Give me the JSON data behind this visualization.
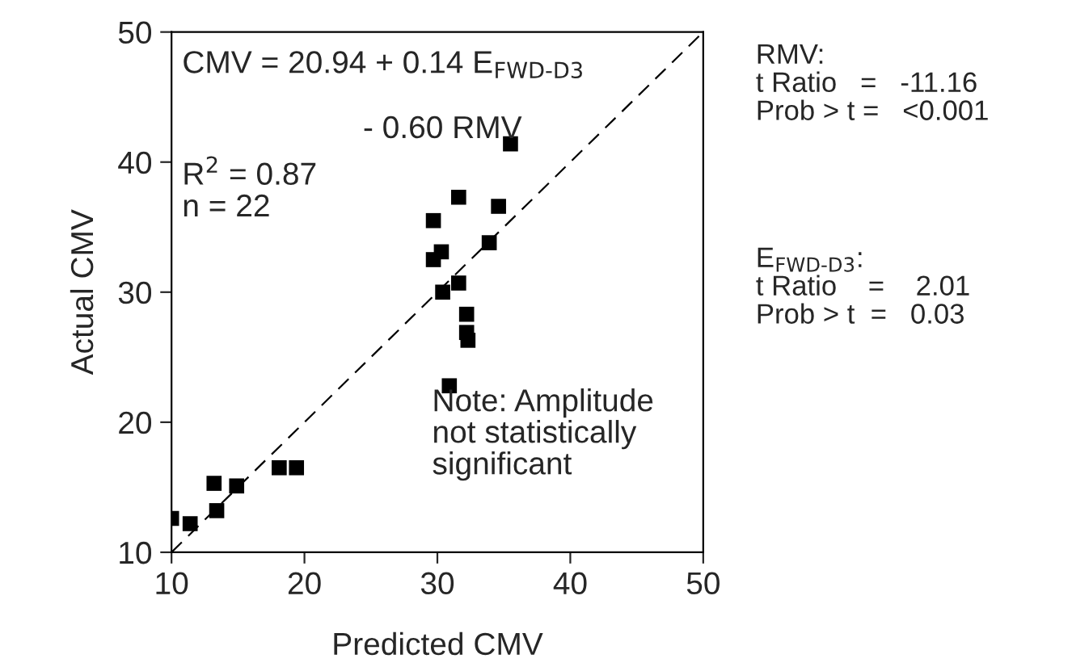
{
  "chart_data": {
    "type": "scatter",
    "xlabel": "Predicted CMV",
    "ylabel": "Actual CMV",
    "xlim": [
      10,
      50
    ],
    "ylim": [
      10,
      50
    ],
    "xticks": [
      10,
      20,
      30,
      40,
      50
    ],
    "yticks": [
      10,
      20,
      30,
      40,
      50
    ],
    "grid": false,
    "legend": false,
    "marker": "square",
    "series": [
      {
        "color": "#000000",
        "x": [
          10.0,
          11.4,
          13.2,
          13.4,
          14.9,
          18.1,
          19.4,
          35.5,
          31.6,
          34.6,
          29.7,
          33.9,
          29.7,
          30.3,
          31.6,
          30.4,
          32.2,
          32.2,
          32.3,
          30.9
        ],
        "values": [
          12.6,
          12.2,
          15.3,
          13.2,
          15.1,
          16.5,
          16.5,
          41.4,
          37.3,
          36.6,
          35.5,
          33.8,
          32.5,
          33.1,
          30.7,
          30.0,
          28.3,
          26.9,
          26.3,
          22.8
        ]
      },
      {
        "type": "line",
        "marker": "none",
        "color": "#000000",
        "line_style": "dashed",
        "x": [
          10,
          50
        ],
        "values": [
          10,
          50
        ]
      }
    ],
    "annotations": [
      "CMV = 20.94 + 0.14 E$_{FWD-D3}$",
      "- 0.60 RMV",
      "R$^{2}$ = 0.87\nn = 22",
      "Note: Amplitude\nnot statistically\nsignificant",
      "RMV:\nt Ratio   =   -11.16\nProb > t =   <0.001",
      "E$_{FWD-D3}$:\nt Ratio    =    2.01\nProb > t  =   0.03"
    ]
  }
}
